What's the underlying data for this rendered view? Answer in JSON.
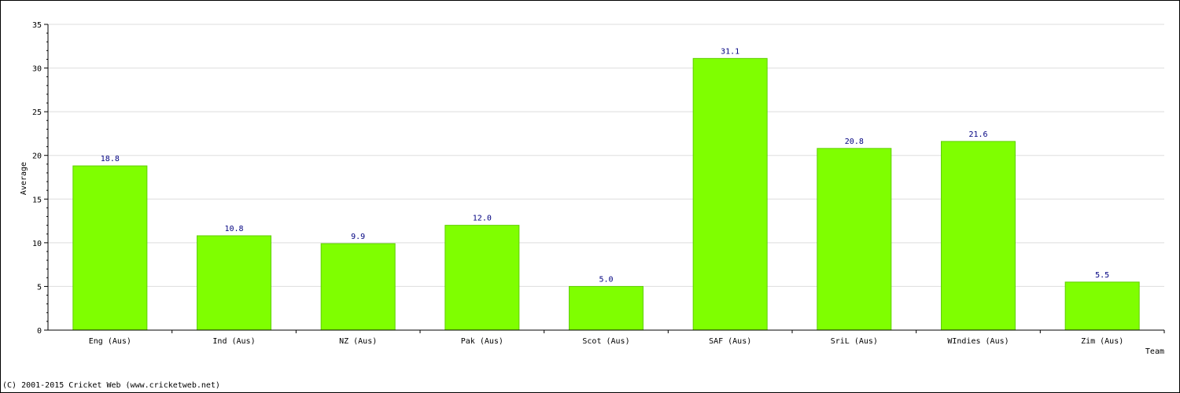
{
  "chart_data": {
    "type": "bar",
    "xlabel": "Team",
    "ylabel": "Average",
    "categories": [
      "Eng (Aus)",
      "Ind (Aus)",
      "NZ (Aus)",
      "Pak (Aus)",
      "Scot (Aus)",
      "SAF (Aus)",
      "SriL (Aus)",
      "WIndies (Aus)",
      "Zim (Aus)"
    ],
    "values": [
      18.8,
      10.8,
      9.9,
      12.0,
      5.0,
      31.1,
      20.8,
      21.6,
      5.5
    ],
    "data_labels": [
      "18.8",
      "10.8",
      "9.9",
      "12.0",
      "5.0",
      "31.1",
      "20.8",
      "21.6",
      "5.5"
    ],
    "ylim": [
      0,
      35
    ],
    "yticks": [
      0,
      5,
      10,
      15,
      20,
      25,
      30,
      35
    ],
    "ytick_labels": [
      "0",
      "5",
      "10",
      "15",
      "20",
      "25",
      "30",
      "35"
    ],
    "grid": true,
    "bar_color": "#7fff00",
    "bar_edge_color": "#5fcf00",
    "grid_color": "#dddddd",
    "label_color": "#000080"
  },
  "footer": {
    "copyright": "(C) 2001-2015 Cricket Web (www.cricketweb.net)"
  }
}
